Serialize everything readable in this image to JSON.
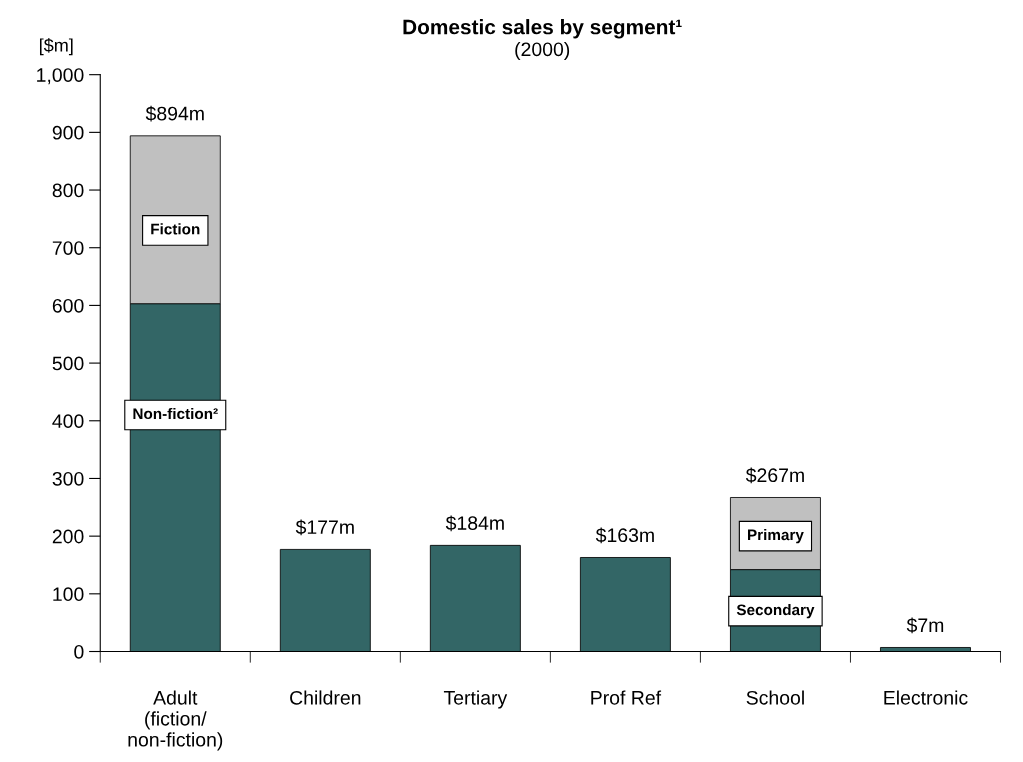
{
  "chart_data": {
    "type": "bar",
    "title": "Domestic sales by segment¹",
    "subtitle": "(2000)",
    "ylabel": "[$m]",
    "categories": [
      "Adult\n(fiction/\nnon-fiction)",
      "Children",
      "Tertiary",
      "Prof Ref",
      "School",
      "Electronic"
    ],
    "stacked": true,
    "series": [
      {
        "color": "#336666",
        "values": [
          603,
          177,
          184,
          163,
          142,
          7
        ]
      },
      {
        "color": "#c0c0c0",
        "values": [
          291,
          null,
          null,
          null,
          125,
          null
        ]
      }
    ],
    "totals": [
      "$894m",
      "$177m",
      "$184m",
      "$163m",
      "$267m",
      "$7m"
    ],
    "annotations": [
      "Non-fiction²",
      "Fiction",
      "Secondary",
      "Primary"
    ],
    "ylim": [
      0,
      1000
    ],
    "yticks": [
      0,
      100,
      200,
      300,
      400,
      500,
      600,
      700,
      800,
      900,
      {
        "value": 1000,
        "label": "1,000"
      }
    ],
    "grid": false,
    "legend": false
  }
}
